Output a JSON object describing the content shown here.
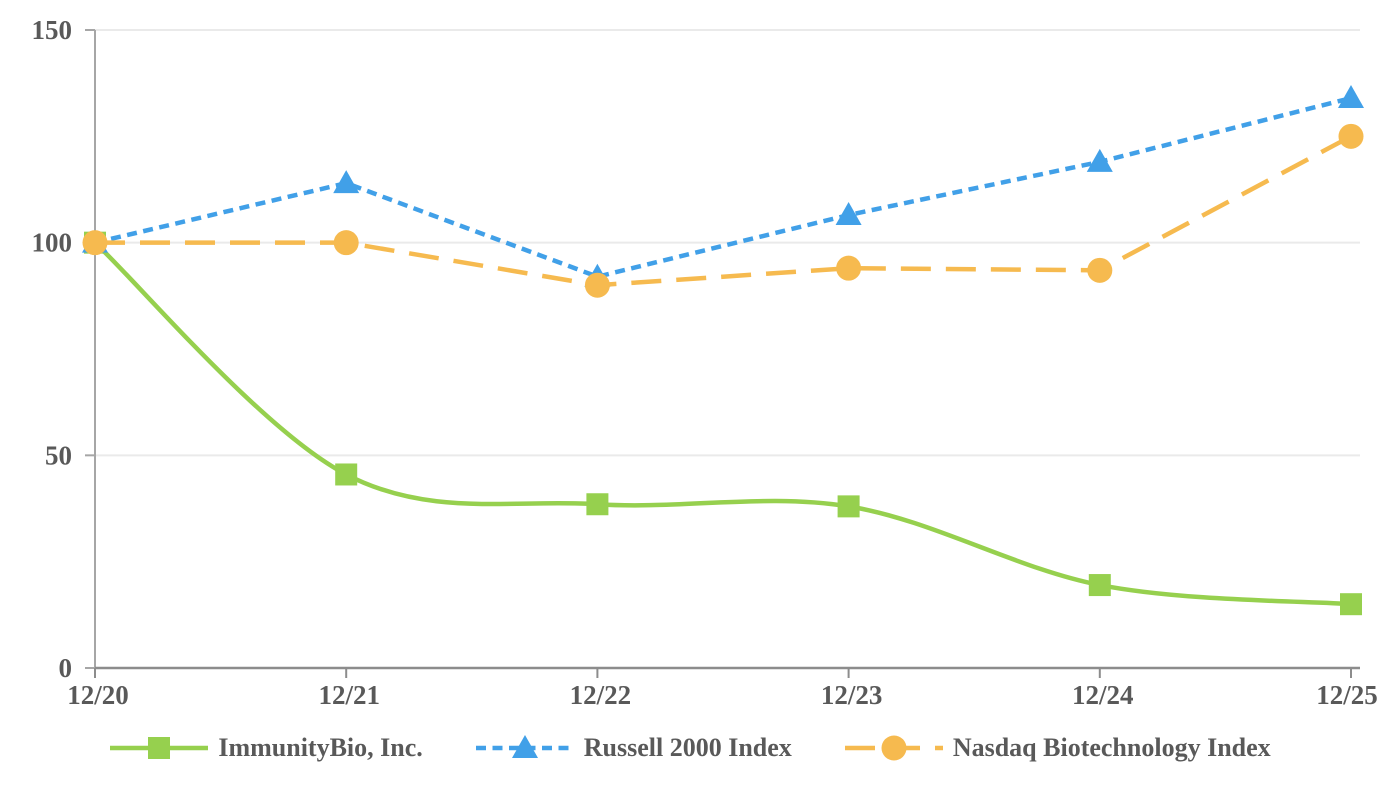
{
  "chart_data": {
    "type": "line",
    "title": "",
    "categories": [
      "12/20",
      "12/21",
      "12/22",
      "12/23",
      "12/24",
      "12/25"
    ],
    "series": [
      {
        "name": "ImmunityBio, Inc.",
        "values": [
          100,
          45.5,
          38.5,
          38,
          19.5,
          15
        ],
        "color": "#96D04E",
        "marker": "square",
        "line_style": "solid",
        "smooth": true
      },
      {
        "name": "Russell 2000 Index",
        "values": [
          100,
          114,
          92,
          106.5,
          119,
          134
        ],
        "color": "#41A0E8",
        "marker": "triangle",
        "line_style": "short-dash",
        "smooth": false
      },
      {
        "name": "Nasdaq Biotechnology Index",
        "values": [
          100,
          100,
          90,
          94,
          93.5,
          125
        ],
        "color": "#F6BA4F",
        "marker": "circle",
        "line_style": "long-dash",
        "smooth": false
      }
    ],
    "ylim": [
      0,
      150
    ],
    "yticks": [
      0,
      50,
      100,
      150
    ],
    "ytick_labels": [
      "0",
      "50",
      "100",
      "150"
    ],
    "grid": "horizontal",
    "legend_position": "bottom",
    "colors": {
      "x_axis": "#8C8C8C",
      "y_axis": "#A6A6A6",
      "gridline": "#EAEAEA",
      "tick_text": "#595959"
    }
  }
}
